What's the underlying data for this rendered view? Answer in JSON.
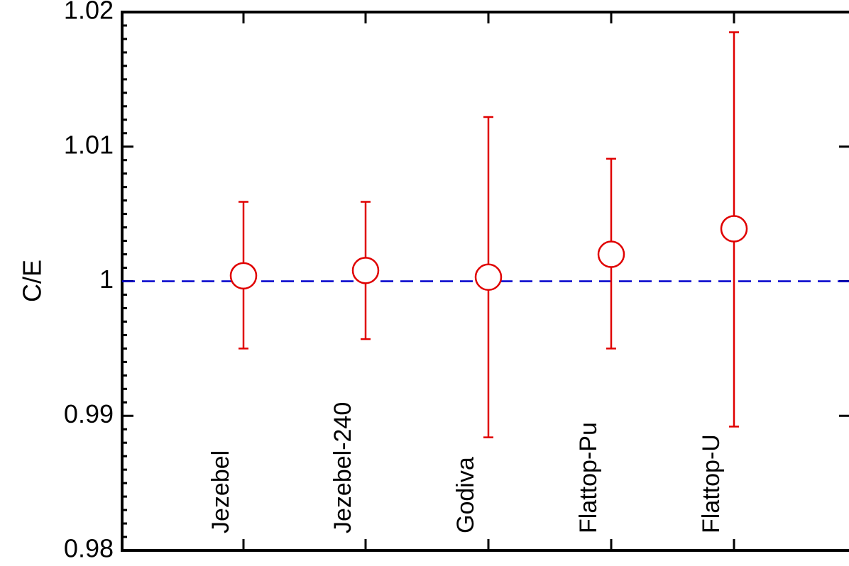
{
  "chart_data": {
    "type": "scatter",
    "title": "",
    "xlabel": "",
    "ylabel": "C/E",
    "ylim": [
      0.98,
      1.02
    ],
    "yticks": [
      "0.98",
      "0.99",
      "1",
      "1.01",
      "1.02"
    ],
    "reference_line": {
      "y": 1.0,
      "style": "dashed",
      "color": "#0000cc"
    },
    "grid": false,
    "colors": {
      "points": "#e00000",
      "reference": "#0000cc",
      "axes": "#000000"
    },
    "categories": [
      "Jezebel",
      "Jezebel-240",
      "Godiva",
      "Flattop-Pu",
      "Flattop-U"
    ],
    "series": [
      {
        "values": [
          1.0004,
          1.0008,
          1.0003,
          1.002,
          1.0039
        ],
        "err_low": [
          0.995,
          0.9957,
          0.9884,
          0.995,
          0.9892
        ],
        "err_high": [
          1.0059,
          1.0059,
          1.0122,
          1.0091,
          1.0185
        ]
      }
    ]
  }
}
